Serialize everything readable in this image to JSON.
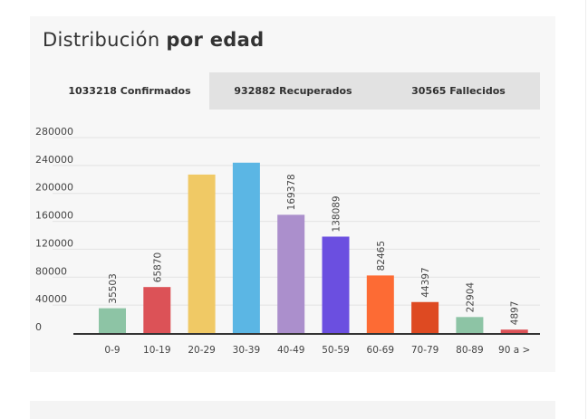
{
  "title": {
    "regular": "Distribución",
    "bold": "por edad"
  },
  "tabs": [
    {
      "label": "1033218 Confirmados",
      "active": true
    },
    {
      "label": "932882 Recuperados",
      "active": false
    },
    {
      "label": "30565 Fallecidos",
      "active": false
    }
  ],
  "chart_data": {
    "type": "bar",
    "categories": [
      "0-9",
      "10-19",
      "20-29",
      "30-39",
      "40-49",
      "50-59",
      "60-69",
      "70-79",
      "80-89",
      "90 a >"
    ],
    "values": [
      35503,
      65870,
      227000,
      244000,
      169378,
      138089,
      82465,
      44397,
      22904,
      4897
    ],
    "data_labels": [
      "35503",
      "65870",
      "",
      "",
      "169378",
      "138089",
      "82465",
      "44397",
      "22904",
      "4897"
    ],
    "colors": [
      "#8dc4a5",
      "#dc5257",
      "#f0c965",
      "#5bb6e4",
      "#ab8fcc",
      "#6b4fe0",
      "#fd6b34",
      "#de4a22",
      "#8dc4a5",
      "#dc5257"
    ],
    "y_ticks": [
      "280000",
      "240000",
      "200000",
      "160000",
      "120000",
      "80000",
      "40000",
      "0"
    ],
    "ylim": [
      0,
      280000
    ],
    "grid": true,
    "xlabel": "",
    "ylabel": ""
  }
}
